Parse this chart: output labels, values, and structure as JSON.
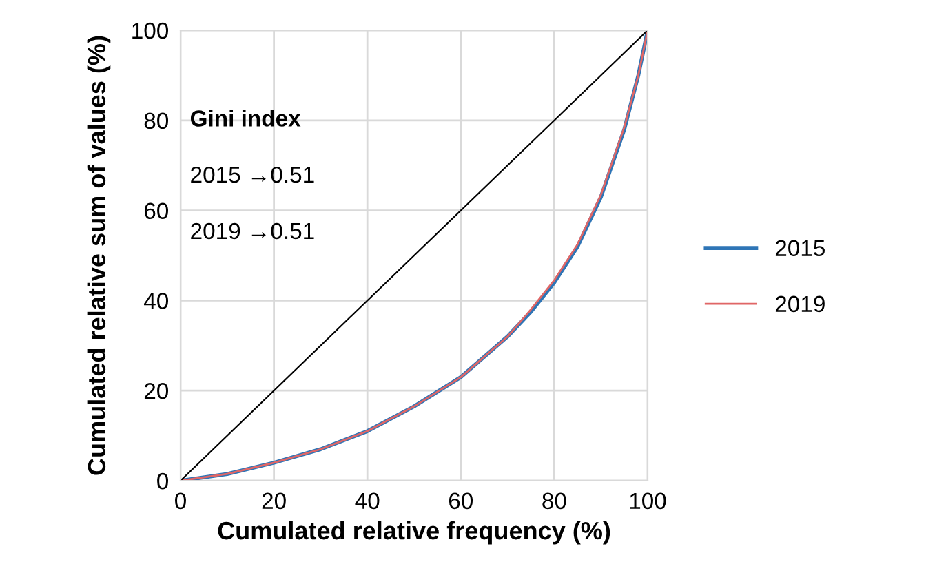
{
  "chart_data": {
    "type": "line",
    "xlabel": "Cumulated relative frequency (%)",
    "ylabel": "Cumulated relative sum of values (%)",
    "x": [
      0,
      10,
      20,
      30,
      40,
      50,
      60,
      70,
      75,
      80,
      85,
      90,
      95,
      98,
      100
    ],
    "series": [
      {
        "name": "2015",
        "color": "#2e75b6",
        "values": [
          0,
          1.5,
          4,
          7,
          11,
          16.5,
          23,
          32,
          37.5,
          44,
          52,
          63,
          78,
          90,
          100
        ]
      },
      {
        "name": "2019",
        "color": "#e06666",
        "values": [
          0,
          1.5,
          4,
          7,
          11,
          16.5,
          23,
          32,
          38,
          44.5,
          52.5,
          63.5,
          78.5,
          90,
          100
        ]
      },
      {
        "color": "#000000",
        "x": [
          0,
          100
        ],
        "values": [
          0,
          100
        ]
      }
    ],
    "xlim": [
      0,
      100
    ],
    "ylim": [
      0,
      100
    ],
    "xticks": [
      0,
      20,
      40,
      60,
      80,
      100
    ],
    "yticks": [
      0,
      20,
      40,
      60,
      80,
      100
    ],
    "grid": true,
    "legend": "right",
    "annotations": [
      "Gini index",
      "2015 →0.51",
      "2019 →0.51"
    ]
  }
}
